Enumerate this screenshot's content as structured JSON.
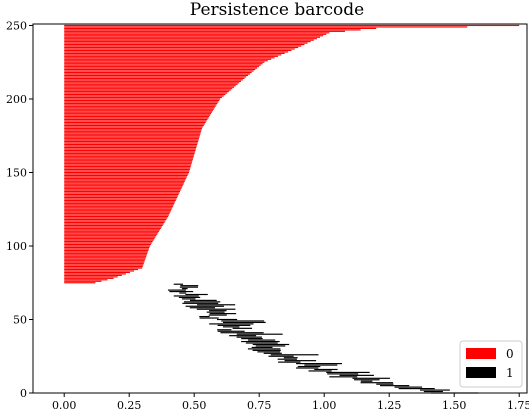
{
  "chart_data": {
    "type": "barcode",
    "title": "Persistence barcode",
    "xlabel": "",
    "ylabel": "",
    "xlim": [
      -0.12,
      1.78
    ],
    "ylim": [
      0,
      251
    ],
    "x_ticks": [
      0.0,
      0.25,
      0.5,
      0.75,
      1.0,
      1.25,
      1.5,
      1.75
    ],
    "x_tick_labels": [
      "0.00",
      "0.25",
      "0.50",
      "0.75",
      "1.00",
      "1.25",
      "1.50",
      "1.75"
    ],
    "y_ticks": [
      0,
      50,
      100,
      150,
      200,
      250
    ],
    "y_tick_labels": [
      "0",
      "50",
      "100",
      "150",
      "200",
      "250"
    ],
    "grid": false,
    "legend_position": "lower-right",
    "series": [
      {
        "name": "0",
        "color": "#ff0000",
        "bar_count": 176,
        "bar_index_range": [
          75,
          250
        ],
        "birth": 0.0,
        "death_profile": [
          {
            "index": 75,
            "death": 0.12
          },
          {
            "index": 78,
            "death": 0.19
          },
          {
            "index": 85,
            "death": 0.3
          },
          {
            "index": 100,
            "death": 0.33
          },
          {
            "index": 120,
            "death": 0.4
          },
          {
            "index": 150,
            "death": 0.48
          },
          {
            "index": 180,
            "death": 0.53
          },
          {
            "index": 200,
            "death": 0.6
          },
          {
            "index": 215,
            "death": 0.7
          },
          {
            "index": 225,
            "death": 0.77
          },
          {
            "index": 235,
            "death": 0.9
          },
          {
            "index": 245,
            "death": 1.02
          },
          {
            "index": 248,
            "death": 1.2
          },
          {
            "index": 249,
            "death": 1.55
          },
          {
            "index": 250,
            "death": 1.75
          }
        ]
      },
      {
        "name": "1",
        "color": "#000000",
        "bar_count": 75,
        "bar_index_range": [
          0,
          74
        ],
        "birth_profile": [
          {
            "index": 74,
            "birth": 0.4
          },
          {
            "index": 60,
            "birth": 0.5
          },
          {
            "index": 45,
            "birth": 0.6
          },
          {
            "index": 30,
            "birth": 0.72
          },
          {
            "index": 15,
            "birth": 0.95
          },
          {
            "index": 5,
            "birth": 1.2
          },
          {
            "index": 0,
            "birth": 1.45
          }
        ],
        "length_profile": [
          {
            "index": 74,
            "length": 0.05
          },
          {
            "index": 60,
            "length": 0.12
          },
          {
            "index": 40,
            "length": 0.15
          },
          {
            "index": 20,
            "length": 0.15
          },
          {
            "index": 5,
            "length": 0.12
          },
          {
            "index": 0,
            "length": 0.15
          }
        ]
      }
    ]
  }
}
